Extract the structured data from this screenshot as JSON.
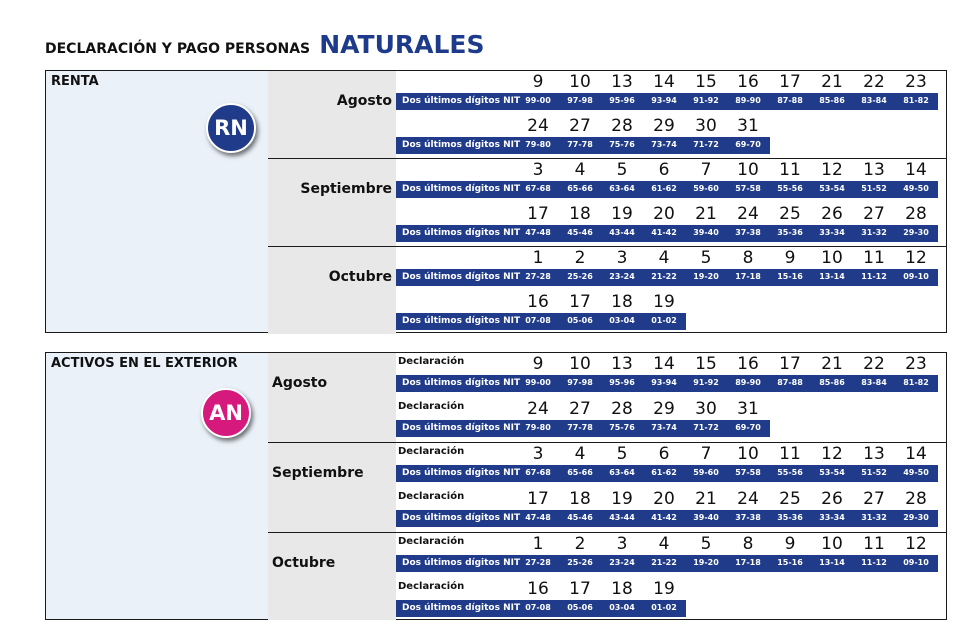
{
  "title": {
    "prefix": "DECLARACIÓN Y PAGO PERSONAS",
    "main": "NATURALES"
  },
  "colors": {
    "navy": "#1f3b8a",
    "magenta": "#d6197c",
    "left_bg": "#eaf1f9",
    "month_bg": "#e8e8e8"
  },
  "sections": [
    {
      "label": "RENTA",
      "badge": "RN",
      "badge_color": "#1f3b8a",
      "row_label": "",
      "digits_header": "Dos últimos dígitos NIT",
      "months": [
        {
          "name": "Agosto",
          "rows": [
            {
              "days": [
                "9",
                "10",
                "13",
                "14",
                "15",
                "16",
                "17",
                "21",
                "22",
                "23"
              ],
              "digits": [
                "99-00",
                "97-98",
                "95-96",
                "93-94",
                "91-92",
                "89-90",
                "87-88",
                "85-86",
                "83-84",
                "81-82"
              ]
            },
            {
              "days": [
                "24",
                "27",
                "28",
                "29",
                "30",
                "31"
              ],
              "digits": [
                "79-80",
                "77-78",
                "75-76",
                "73-74",
                "71-72",
                "69-70"
              ]
            }
          ]
        },
        {
          "name": "Septiembre",
          "rows": [
            {
              "days": [
                "3",
                "4",
                "5",
                "6",
                "7",
                "10",
                "11",
                "12",
                "13",
                "14"
              ],
              "digits": [
                "67-68",
                "65-66",
                "63-64",
                "61-62",
                "59-60",
                "57-58",
                "55-56",
                "53-54",
                "51-52",
                "49-50"
              ]
            },
            {
              "days": [
                "17",
                "18",
                "19",
                "20",
                "21",
                "24",
                "25",
                "26",
                "27",
                "28"
              ],
              "digits": [
                "47-48",
                "45-46",
                "43-44",
                "41-42",
                "39-40",
                "37-38",
                "35-36",
                "33-34",
                "31-32",
                "29-30"
              ]
            }
          ]
        },
        {
          "name": "Octubre",
          "rows": [
            {
              "days": [
                "1",
                "2",
                "3",
                "4",
                "5",
                "8",
                "9",
                "10",
                "11",
                "12"
              ],
              "digits": [
                "27-28",
                "25-26",
                "23-24",
                "21-22",
                "19-20",
                "17-18",
                "15-16",
                "13-14",
                "11-12",
                "09-10"
              ]
            },
            {
              "days": [
                "16",
                "17",
                "18",
                "19"
              ],
              "digits": [
                "07-08",
                "05-06",
                "03-04",
                "01-02"
              ]
            }
          ]
        }
      ]
    },
    {
      "label": "ACTIVOS EN EL EXTERIOR",
      "badge": "AN",
      "badge_color": "#d6197c",
      "row_label": "Declaración",
      "digits_header": "Dos últimos dígitos NIT",
      "months": [
        {
          "name": "Agosto",
          "rows": [
            {
              "days": [
                "9",
                "10",
                "13",
                "14",
                "15",
                "16",
                "17",
                "21",
                "22",
                "23"
              ],
              "digits": [
                "99-00",
                "97-98",
                "95-96",
                "93-94",
                "91-92",
                "89-90",
                "87-88",
                "85-86",
                "83-84",
                "81-82"
              ]
            },
            {
              "days": [
                "24",
                "27",
                "28",
                "29",
                "30",
                "31"
              ],
              "digits": [
                "79-80",
                "77-78",
                "75-76",
                "73-74",
                "71-72",
                "69-70"
              ]
            }
          ]
        },
        {
          "name": "Septiembre",
          "rows": [
            {
              "days": [
                "3",
                "4",
                "5",
                "6",
                "7",
                "10",
                "11",
                "12",
                "13",
                "14"
              ],
              "digits": [
                "67-68",
                "65-66",
                "63-64",
                "61-62",
                "59-60",
                "57-58",
                "55-56",
                "53-54",
                "51-52",
                "49-50"
              ]
            },
            {
              "days": [
                "17",
                "18",
                "19",
                "20",
                "21",
                "24",
                "25",
                "26",
                "27",
                "28"
              ],
              "digits": [
                "47-48",
                "45-46",
                "43-44",
                "41-42",
                "39-40",
                "37-38",
                "35-36",
                "33-34",
                "31-32",
                "29-30"
              ]
            }
          ]
        },
        {
          "name": "Octubre",
          "rows": [
            {
              "days": [
                "1",
                "2",
                "3",
                "4",
                "5",
                "8",
                "9",
                "10",
                "11",
                "12"
              ],
              "digits": [
                "27-28",
                "25-26",
                "23-24",
                "21-22",
                "19-20",
                "17-18",
                "15-16",
                "13-14",
                "11-12",
                "09-10"
              ]
            },
            {
              "days": [
                "16",
                "17",
                "18",
                "19"
              ],
              "digits": [
                "07-08",
                "05-06",
                "03-04",
                "01-02"
              ]
            }
          ]
        }
      ]
    }
  ]
}
